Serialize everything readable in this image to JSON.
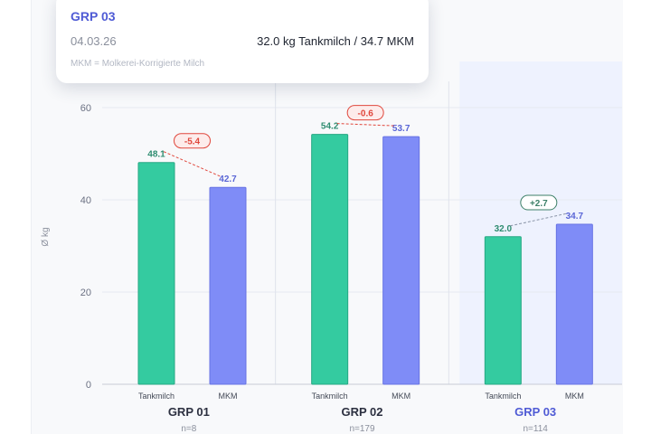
{
  "chart_data": {
    "type": "bar",
    "y_axis": {
      "label": "Ø kg",
      "ticks": [
        0,
        20,
        40,
        60
      ],
      "ylim": [
        0,
        60
      ]
    },
    "grid": true,
    "groups": [
      {
        "name": "GRP 01",
        "n": "n=8",
        "highlighted": false,
        "labels": [
          "Tankmilch",
          "MKM"
        ],
        "values": [
          48.1,
          42.7
        ],
        "delta": "-5.4"
      },
      {
        "name": "GRP 02",
        "n": "n=179",
        "highlighted": false,
        "labels": [
          "Tankmilch",
          "MKM"
        ],
        "values": [
          54.2,
          53.7
        ],
        "delta": "-0.6"
      },
      {
        "name": "GRP 03",
        "n": "n=114",
        "highlighted": true,
        "labels": [
          "Tankmilch",
          "MKM"
        ],
        "values": [
          32.0,
          34.7
        ],
        "delta": "+2.7"
      }
    ],
    "colors": {
      "tankmilch": "#34cba0",
      "mkm": "#7f8cf7",
      "highlight_bg": "#eef2fe",
      "negative": "#e0473c",
      "positive": "#3d8068",
      "group_label": "#2c3040",
      "group_label_highlight": "#4f5bd5"
    }
  },
  "tooltip": {
    "title": "GRP 03",
    "date": "04.03.26",
    "value": "32.0 kg Tankmilch / 34.7 MKM",
    "note": "MKM = Molkerei-Korrigierte Milch"
  }
}
